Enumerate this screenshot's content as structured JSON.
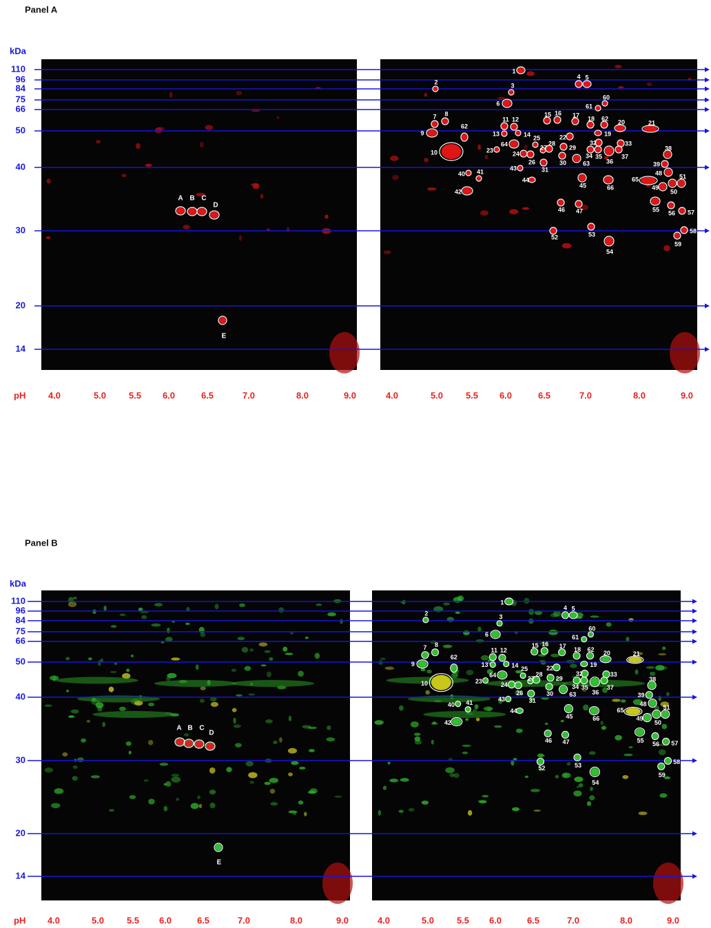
{
  "panels": [
    {
      "title": "Panel A",
      "kda_label": "kDa",
      "kda": [
        "110",
        "96",
        "84",
        "75",
        "66",
        "50",
        "40",
        "30",
        "20",
        "14"
      ],
      "ph_label": "pH",
      "ph": [
        "4.0",
        "5.0",
        "5.5",
        "6.0",
        "6.5",
        "7.0",
        "8.0",
        "9.0"
      ],
      "left_spots": [
        "A",
        "B",
        "C",
        "D",
        "E"
      ],
      "right_spots": [
        "1",
        "2",
        "3",
        "4",
        "5",
        "60",
        "61",
        "6",
        "7",
        "8",
        "11",
        "12",
        "15",
        "16",
        "17",
        "18",
        "62",
        "20",
        "21",
        "9",
        "62",
        "13",
        "14",
        "19",
        "10",
        "64",
        "23",
        "25",
        "28",
        "27",
        "22",
        "29",
        "32",
        "33",
        "24",
        "26",
        "31",
        "30",
        "34",
        "35",
        "36",
        "37",
        "63",
        "38",
        "39",
        "43",
        "40",
        "41",
        "44",
        "45",
        "66",
        "48",
        "65",
        "49",
        "50",
        "51",
        "42",
        "46",
        "47",
        "55",
        "56",
        "57",
        "52",
        "53",
        "58",
        "54",
        "59"
      ]
    },
    {
      "title": "Panel B",
      "kda_label": "kDa",
      "kda": [
        "110",
        "96",
        "84",
        "75",
        "66",
        "50",
        "40",
        "30",
        "20",
        "14"
      ],
      "ph_label": "pH",
      "ph": [
        "4.0",
        "5.0",
        "5.5",
        "6.0",
        "6.5",
        "7.0",
        "8.0",
        "9.0"
      ],
      "left_spots": [
        "A",
        "B",
        "C",
        "D",
        "E"
      ],
      "right_spots": [
        "1",
        "2",
        "3",
        "4",
        "5",
        "60",
        "61",
        "6",
        "7",
        "8",
        "11",
        "12",
        "15",
        "16",
        "17",
        "18",
        "62",
        "20",
        "21",
        "9",
        "62",
        "13",
        "14",
        "19",
        "10",
        "64",
        "23",
        "25",
        "28",
        "27",
        "22",
        "29",
        "32",
        "33",
        "24",
        "26",
        "31",
        "30",
        "34",
        "35",
        "36",
        "37",
        "63",
        "38",
        "39",
        "43",
        "40",
        "41",
        "44",
        "45",
        "66",
        "48",
        "65",
        "49",
        "50",
        "51",
        "42",
        "46",
        "47",
        "55",
        "56",
        "57",
        "52",
        "53",
        "58",
        "54",
        "59"
      ]
    }
  ]
}
